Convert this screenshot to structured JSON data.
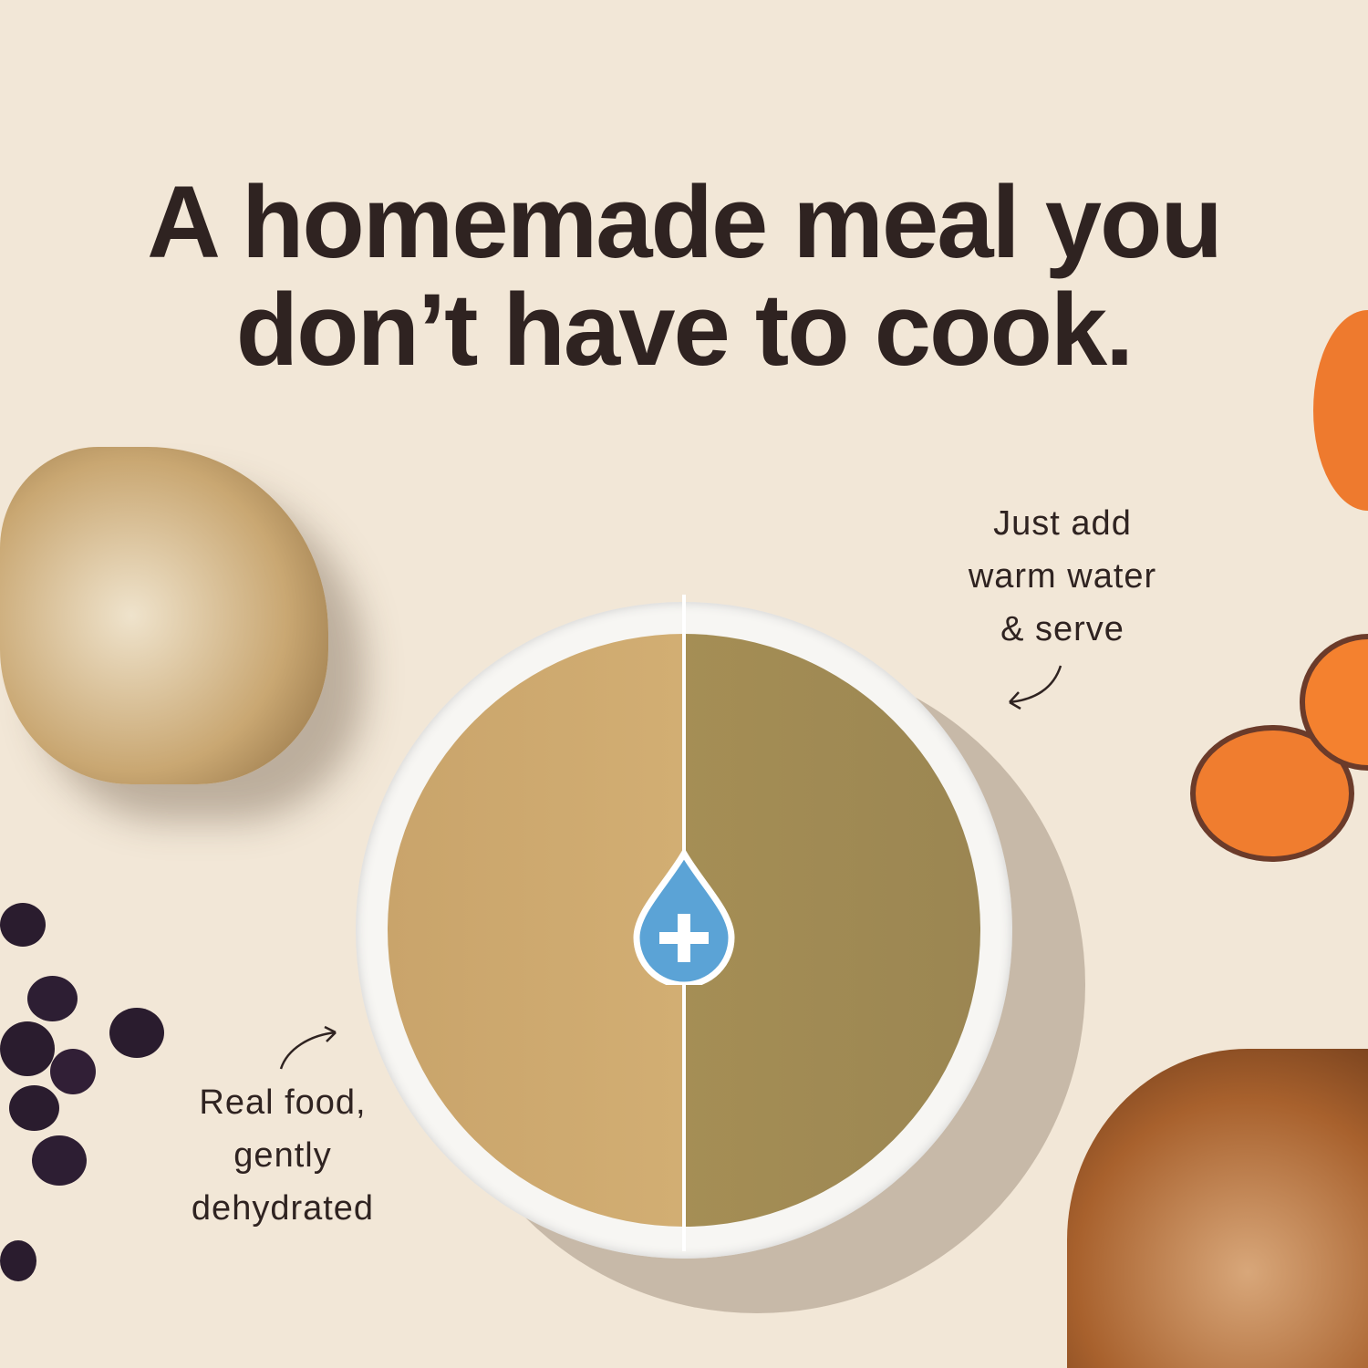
{
  "headline": {
    "line1": "A homemade meal you",
    "line2": "don’t have to cook."
  },
  "captions": {
    "right": {
      "line1": "Just add",
      "line2": "warm water",
      "line3": "& serve"
    },
    "left": {
      "line1": "Real food,",
      "line2": "gently",
      "line3": "dehydrated"
    }
  },
  "icons": {
    "center": "water-drop-plus-icon",
    "arrows": "curved-arrow-icon"
  },
  "colors": {
    "background": "#f2e7d7",
    "text": "#2f2321",
    "drop": "#5ba3d6"
  }
}
